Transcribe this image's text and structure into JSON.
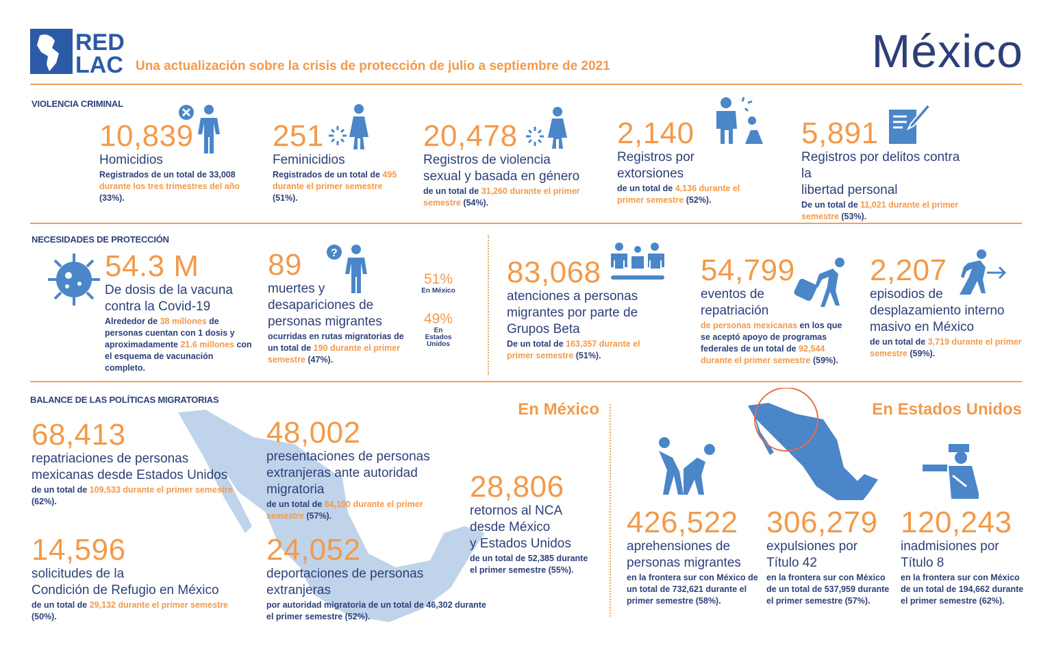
{
  "header": {
    "logo_text": [
      "RED",
      "LAC"
    ],
    "subtitle": "Una actualización sobre la crisis de protección de julio a septiembre de 2021",
    "country": "México"
  },
  "colors": {
    "accent": "#f29a4a",
    "navy": "#2d3f78",
    "icon_blue": "#4a86c8",
    "map_light": "#bfd4ea"
  },
  "violencia": {
    "label": "VIOLENCIA CRIMINAL",
    "stats": [
      {
        "num": "10,839",
        "title": [
          "Homicidios"
        ],
        "icon": "person-x-icon",
        "desc": [
          {
            "text": "Registrados de un total de 33,008 "
          },
          {
            "text": "durante los tres trimestres del año",
            "accent": true
          },
          {
            "text": " (33%)."
          }
        ]
      },
      {
        "num": "251",
        "title": [
          "Feminicidios"
        ],
        "icon": "woman-burst-icon",
        "desc": [
          {
            "text": "Registrados de un total de "
          },
          {
            "text": "495 durante el primer semestre",
            "accent": true
          },
          {
            "text": " (51%)."
          }
        ]
      },
      {
        "num": "20,478",
        "title": [
          "Registros de violencia",
          "sexual y basada en género"
        ],
        "icon": "woman-burst-icon",
        "desc": [
          {
            "text": "de un total de "
          },
          {
            "text": "31,260 durante el primer semestre",
            "accent": true
          },
          {
            "text": " (54%)."
          }
        ]
      },
      {
        "num": "2,140",
        "title": [
          "Registros por extorsiones"
        ],
        "icon": "extortion-icon",
        "desc": [
          {
            "text": "de un total de "
          },
          {
            "text": "4,136 durante el primer semestre",
            "accent": true
          },
          {
            "text": " (52%)."
          }
        ]
      },
      {
        "num": "5,891",
        "title": [
          "Registros por delitos contra la",
          "libertad personal"
        ],
        "icon": "document-pen-icon",
        "desc": [
          {
            "text": "De un total de "
          },
          {
            "text": "11,021 durante el primer semestre",
            "accent": true
          },
          {
            "text": " (53%)."
          }
        ]
      }
    ]
  },
  "proteccion": {
    "label": "NECESIDADES DE PROTECCIÓN",
    "stats": [
      {
        "num": "54.3 M",
        "title": [
          "De dosis de la vacuna",
          "contra la Covid-19"
        ],
        "icon": "virus-icon",
        "desc": [
          {
            "text": "Alrededor de "
          },
          {
            "text": "38 millones",
            "accent": true
          },
          {
            "text": " de personas cuentan con 1 dosis y aproximadamente "
          },
          {
            "text": "21.6 millones",
            "accent": true
          },
          {
            "text": " con el esquema de vacunación completo."
          }
        ]
      },
      {
        "num": "89",
        "title": [
          "muertes y",
          "desapariciones de",
          "personas migrantes"
        ],
        "icon": "person-question-icon",
        "desc": [
          {
            "text": "ocurridas en rutas migratorias de un total de "
          },
          {
            "text": "190 durante el primer semestre",
            "accent": true
          },
          {
            "text": " (47%)."
          }
        ]
      },
      {
        "num": "83,068",
        "title": [
          "atenciones a personas",
          "migrantes por parte de",
          "Grupos Beta"
        ],
        "icon": "group-icon",
        "desc": [
          {
            "text": "De un total de "
          },
          {
            "text": "163,357 durante el primer semestre",
            "accent": true
          },
          {
            "text": " (51%)."
          }
        ]
      },
      {
        "num": "54,799",
        "title": [
          "eventos de",
          "repatriación"
        ],
        "icon": "traveler-icon",
        "desc": [
          {
            "text": "de personas mexicanas",
            "accent": true
          },
          {
            "text": " en los que se aceptó apoyo de programas federales de un total de "
          },
          {
            "text": "92,544 durante el primer semestre",
            "accent": true
          },
          {
            "text": " (59%)."
          }
        ]
      },
      {
        "num": "2,207",
        "title": [
          "episodios de",
          "desplazamiento interno",
          "masivo en México"
        ],
        "icon": "running-arrow-icon",
        "desc": [
          {
            "text": "de un total de "
          },
          {
            "text": "3,719 durante el primer semestre",
            "accent": true
          },
          {
            "text": " (59%)."
          }
        ]
      }
    ],
    "split": [
      {
        "pct": "51%",
        "label": "En México"
      },
      {
        "pct": "49%",
        "label": "En Estados Unidos"
      }
    ]
  },
  "balance": {
    "label": "BALANCE DE LAS POLÍTICAS MIGRATORIAS",
    "mexico_label": "En México",
    "usa_label": "En Estados Unidos",
    "mexico": [
      {
        "num": "68,413",
        "title": [
          "repatriaciones de personas",
          "mexicanas desde Estados Unidos"
        ],
        "desc": [
          {
            "text": "de un total de "
          },
          {
            "text": "109,533 durante el primer semestre",
            "accent": true
          },
          {
            "text": " (62%)."
          }
        ]
      },
      {
        "num": "48,002",
        "title": [
          "presentaciones de personas",
          "extranjeras ante autoridad",
          "migratoria"
        ],
        "desc": [
          {
            "text": "de un total de "
          },
          {
            "text": "84,100 durante el primer semestre",
            "accent": true
          },
          {
            "text": " (57%)."
          }
        ]
      },
      {
        "num": "28,806",
        "title": [
          "retornos al NCA",
          "desde México",
          "y Estados Unidos"
        ],
        "desc": [
          {
            "text": "de un total de 52,385 durante el primer semestre (55%)."
          }
        ]
      },
      {
        "num": "14,596",
        "title": [
          "solicitudes de la",
          "Condición de Refugio en México"
        ],
        "desc": [
          {
            "text": "de un total de "
          },
          {
            "text": "29,132 durante el primer semestre",
            "accent": true
          },
          {
            "text": " (50%)."
          }
        ]
      },
      {
        "num": "24,052",
        "title": [
          "deportaciones de personas",
          "extranjeras"
        ],
        "desc": [
          {
            "text": "por autoridad migratoria de un total de 46,302 durante el primer semestre (52%)."
          }
        ]
      }
    ],
    "usa": [
      {
        "num": "426,522",
        "title": [
          "aprehensiones de",
          "personas migrantes"
        ],
        "icon": "apprehension-icon",
        "desc": [
          {
            "text": "en la frontera sur con México de un total de 732,621 durante el primer semestre (58%)."
          }
        ]
      },
      {
        "num": "306,279",
        "title": [
          "expulsiones por",
          "Título 42"
        ],
        "icon": "mexico-map-icon",
        "desc": [
          {
            "text": "en la frontera sur con México de un total de 537,959 durante el primer semestre (57%)."
          }
        ]
      },
      {
        "num": "120,243",
        "title": [
          "inadmisiones por",
          "Título 8"
        ],
        "icon": "officer-stop-icon",
        "desc": [
          {
            "text": "en la frontera sur con México de un total de 194,662 durante el primer semestre (62%)."
          }
        ]
      }
    ]
  }
}
